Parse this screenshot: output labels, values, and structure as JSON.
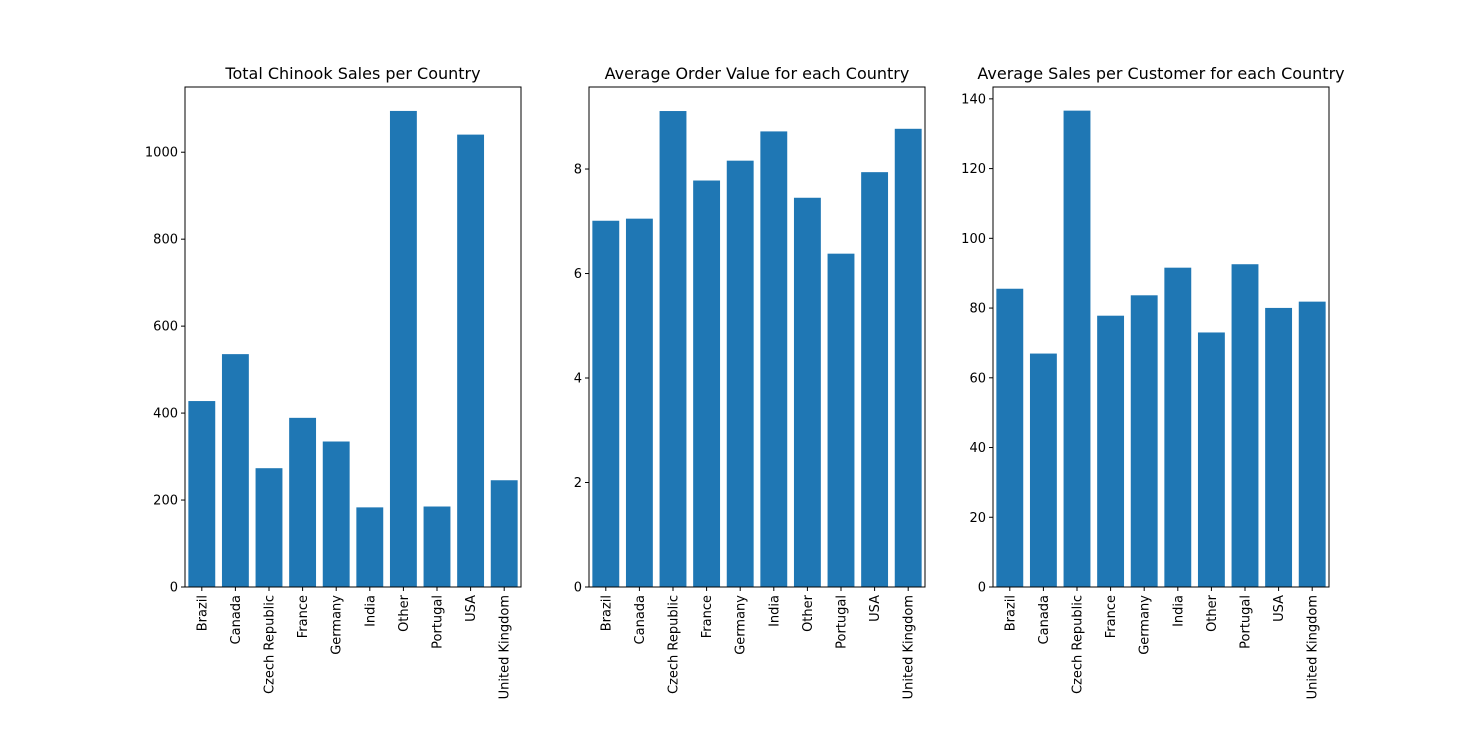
{
  "bar_color": "#1f77b4",
  "chart_data": [
    {
      "type": "bar",
      "title": "Total Chinook Sales per Country",
      "categories": [
        "Brazil",
        "Canada",
        "Czech Republic",
        "France",
        "Germany",
        "India",
        "Other",
        "Portugal",
        "USA",
        "United Kingdom"
      ],
      "values": [
        427.68,
        535.59,
        273.24,
        389.07,
        334.62,
        183.15,
        1094.94,
        185.13,
        1040.49,
        245.52
      ],
      "ylim": [
        0,
        1150
      ],
      "yticks": [
        0,
        200,
        400,
        600,
        800,
        1000
      ],
      "xlabel": "",
      "ylabel": "",
      "grid": false
    },
    {
      "type": "bar",
      "title": "Average Order Value for each Country",
      "categories": [
        "Brazil",
        "Canada",
        "Czech Republic",
        "France",
        "Germany",
        "India",
        "Other",
        "Portugal",
        "USA",
        "United Kingdom"
      ],
      "values": [
        7.01,
        7.05,
        9.11,
        7.78,
        8.16,
        8.72,
        7.45,
        6.38,
        7.94,
        8.77
      ],
      "ylim": [
        0,
        9.57
      ],
      "yticks": [
        0,
        2,
        4,
        6,
        8
      ],
      "xlabel": "",
      "ylabel": "",
      "grid": false
    },
    {
      "type": "bar",
      "title": "Average Sales per Customer for each Country",
      "categories": [
        "Brazil",
        "Canada",
        "Czech Republic",
        "France",
        "Germany",
        "India",
        "Other",
        "Portugal",
        "USA",
        "United Kingdom"
      ],
      "values": [
        85.54,
        66.95,
        136.62,
        77.81,
        83.66,
        91.58,
        73.0,
        92.57,
        80.04,
        81.84
      ],
      "ylim": [
        0,
        143.4
      ],
      "yticks": [
        0,
        20,
        40,
        60,
        80,
        100,
        120,
        140
      ],
      "xlabel": "",
      "ylabel": "",
      "grid": false
    }
  ]
}
